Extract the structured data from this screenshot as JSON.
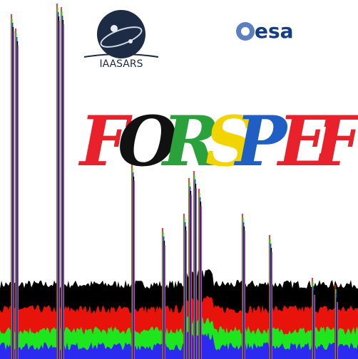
{
  "logos": {
    "left": "IAASARS",
    "right": "esa"
  },
  "title": {
    "letters": [
      {
        "text": "F",
        "color": "#e8212b"
      },
      {
        "text": "O",
        "color": "#111111"
      },
      {
        "text": "R",
        "color": "#2aa13a"
      },
      {
        "text": "S",
        "color": "#f2d400"
      },
      {
        "text": "P",
        "color": "#1f5fc4"
      },
      {
        "text": "E",
        "color": "#e8212b"
      },
      {
        "text": "F",
        "color": "#e8212b"
      }
    ]
  }
}
